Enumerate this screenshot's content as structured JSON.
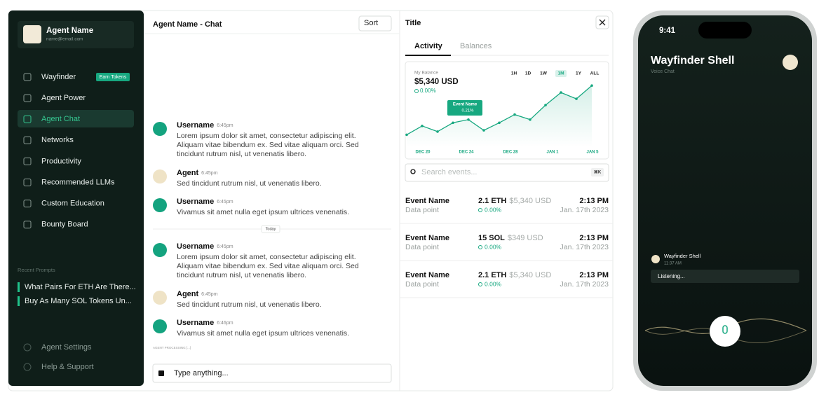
{
  "sidebar": {
    "agent": {
      "name": "Agent Name",
      "email": "name@email.com"
    },
    "menu": [
      {
        "label": "Wayfinder",
        "badge": "Earn Tokens"
      },
      {
        "label": "Agent Power"
      },
      {
        "label": "Agent Chat"
      },
      {
        "label": "Networks"
      },
      {
        "label": "Productivity"
      },
      {
        "label": "Recommended LLMs"
      },
      {
        "label": "Custom Education"
      },
      {
        "label": "Bounty Board"
      }
    ],
    "recent_prompts_title": "Recent Prompts",
    "recent_prompts": [
      "What Pairs For ETH Are There...",
      "Buy As Many SOL Tokens Un..."
    ],
    "footer": [
      "Agent Settings",
      "Help & Support"
    ]
  },
  "chat": {
    "title": "Agent Name - Chat",
    "sort": "Sort",
    "messages": [
      {
        "user": "Username",
        "time": "6:45pm",
        "lines": [
          "Lorem ipsum dolor sit amet, consectetur adipiscing elit.",
          "Aliquam vitae bibendum ex. Sed vitae aliquam orci. Sed",
          "tincidunt rutrum nisl, ut venenatis libero."
        ]
      },
      {
        "user": "Agent",
        "time": "6:45pm",
        "lines": [
          "Sed tincidunt rutrum nisl, ut venenatis libero."
        ]
      },
      {
        "user": "Username",
        "time": "6:45pm",
        "lines": [
          "Vivamus sit amet nulla eget ipsum ultrices venenatis."
        ]
      },
      {
        "user": "Username",
        "time": "6:45pm",
        "lines": [
          "Lorem ipsum dolor sit amet, consectetur adipiscing elit.",
          "Aliquam vitae bibendum ex. Sed vitae aliquam orci. Sed",
          "tincidunt rutrum nisl, ut venenatis libero."
        ]
      },
      {
        "user": "Agent",
        "time": "6:45pm",
        "lines": [
          "Sed tincidunt rutrum nisl, ut venenatis libero."
        ]
      },
      {
        "user": "Username",
        "time": "6:46pm",
        "lines": [
          "Vivamus sit amet nulla eget ipsum ultrices venenatis."
        ]
      }
    ],
    "divider": "Today",
    "status": "AGENT PROCESSING [...]",
    "input_placeholder": "Type anything..."
  },
  "activity_panel": {
    "title": "Title",
    "tabs": [
      "Activity",
      "Balances"
    ],
    "balance_label": "My Balance",
    "balance": "$5,340 USD",
    "change": "0.00%",
    "periods": [
      "1H",
      "1D",
      "1W",
      "1M",
      "1Y",
      "ALL"
    ],
    "tooltip": {
      "title": "Event Name",
      "change": "0.21%"
    },
    "chart": {
      "type": "line",
      "x_labels": [
        "DEC 20",
        "DEC 24",
        "DEC 28",
        "JAN 1",
        "JAN 5"
      ],
      "values": [
        14,
        28,
        19,
        33,
        38,
        21,
        33,
        46,
        38,
        61,
        81,
        71,
        92
      ],
      "ylim": [
        0,
        100
      ]
    },
    "search_placeholder": "Search events...",
    "search_shortcut": "⌘K",
    "events": [
      {
        "name": "Event Name",
        "subtitle": "Data point",
        "amount": "2.1 ETH",
        "usd": "$5,340 USD",
        "change": "0.00%",
        "time": "2:13 PM",
        "date": "Jan. 17th 2023"
      },
      {
        "name": "Event Name",
        "subtitle": "Data point",
        "amount": "15 SOL",
        "usd": "$349 USD",
        "change": "0.00%",
        "time": "2:13 PM",
        "date": "Jan. 17th 2023"
      },
      {
        "name": "Event Name",
        "subtitle": "Data point",
        "amount": "2.1 ETH",
        "usd": "$5,340 USD",
        "change": "0.00%",
        "time": "2:13 PM",
        "date": "Jan. 17th 2023"
      }
    ]
  },
  "phone": {
    "time": "9:41",
    "title": "Wayfinder Shell",
    "subtitle": "Voice Chat",
    "message": {
      "sender": "Wayfinder Shell",
      "time": "11:37 AM",
      "text": "Listening..."
    }
  }
}
